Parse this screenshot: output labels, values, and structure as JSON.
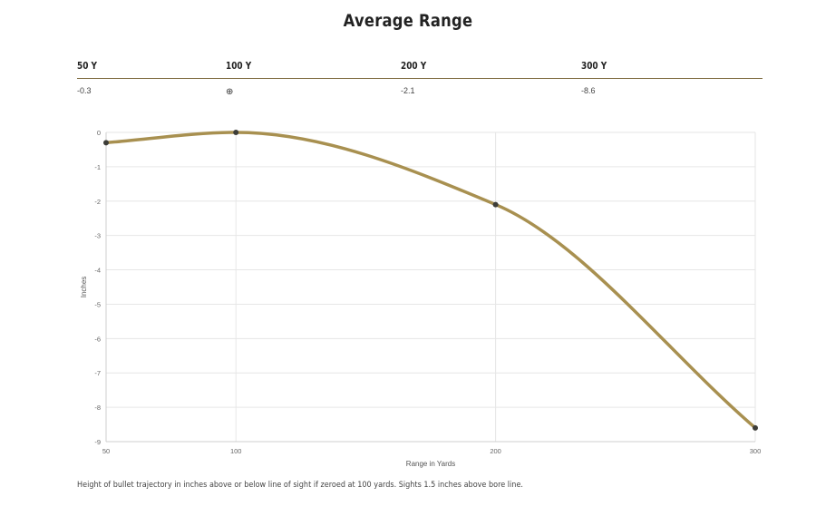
{
  "page": {
    "title": "Average Range",
    "footnote": "Height of bullet trajectory in inches above or below line of sight if zeroed at 100 yards. Sights 1.5 inches above bore line."
  },
  "range_table": {
    "headers": [
      "50 Y",
      "100 Y",
      "200 Y",
      "300 Y"
    ],
    "values": [
      "-0.3",
      "",
      "-2.1",
      "-8.6"
    ],
    "zero_icon": "crosshair-icon",
    "zero_glyph": "⊕",
    "divider_color": "#7d6a3e"
  },
  "chart_data": {
    "type": "line",
    "title": "",
    "xlabel": "Range in Yards",
    "ylabel": "Inches",
    "x": [
      50,
      100,
      200,
      300
    ],
    "series": [
      {
        "values": [
          -0.3,
          0,
          -2.1,
          -8.6
        ],
        "color": "#a89050",
        "marker_color": "#3d3d38"
      }
    ],
    "xlim": [
      50,
      300
    ],
    "ylim": [
      -9,
      0
    ],
    "x_ticks": [
      50,
      100,
      200,
      300
    ],
    "y_ticks": [
      0,
      -1,
      -2,
      -3,
      -4,
      -5,
      -6,
      -7,
      -8,
      -9
    ],
    "grid": true,
    "smooth": true
  }
}
